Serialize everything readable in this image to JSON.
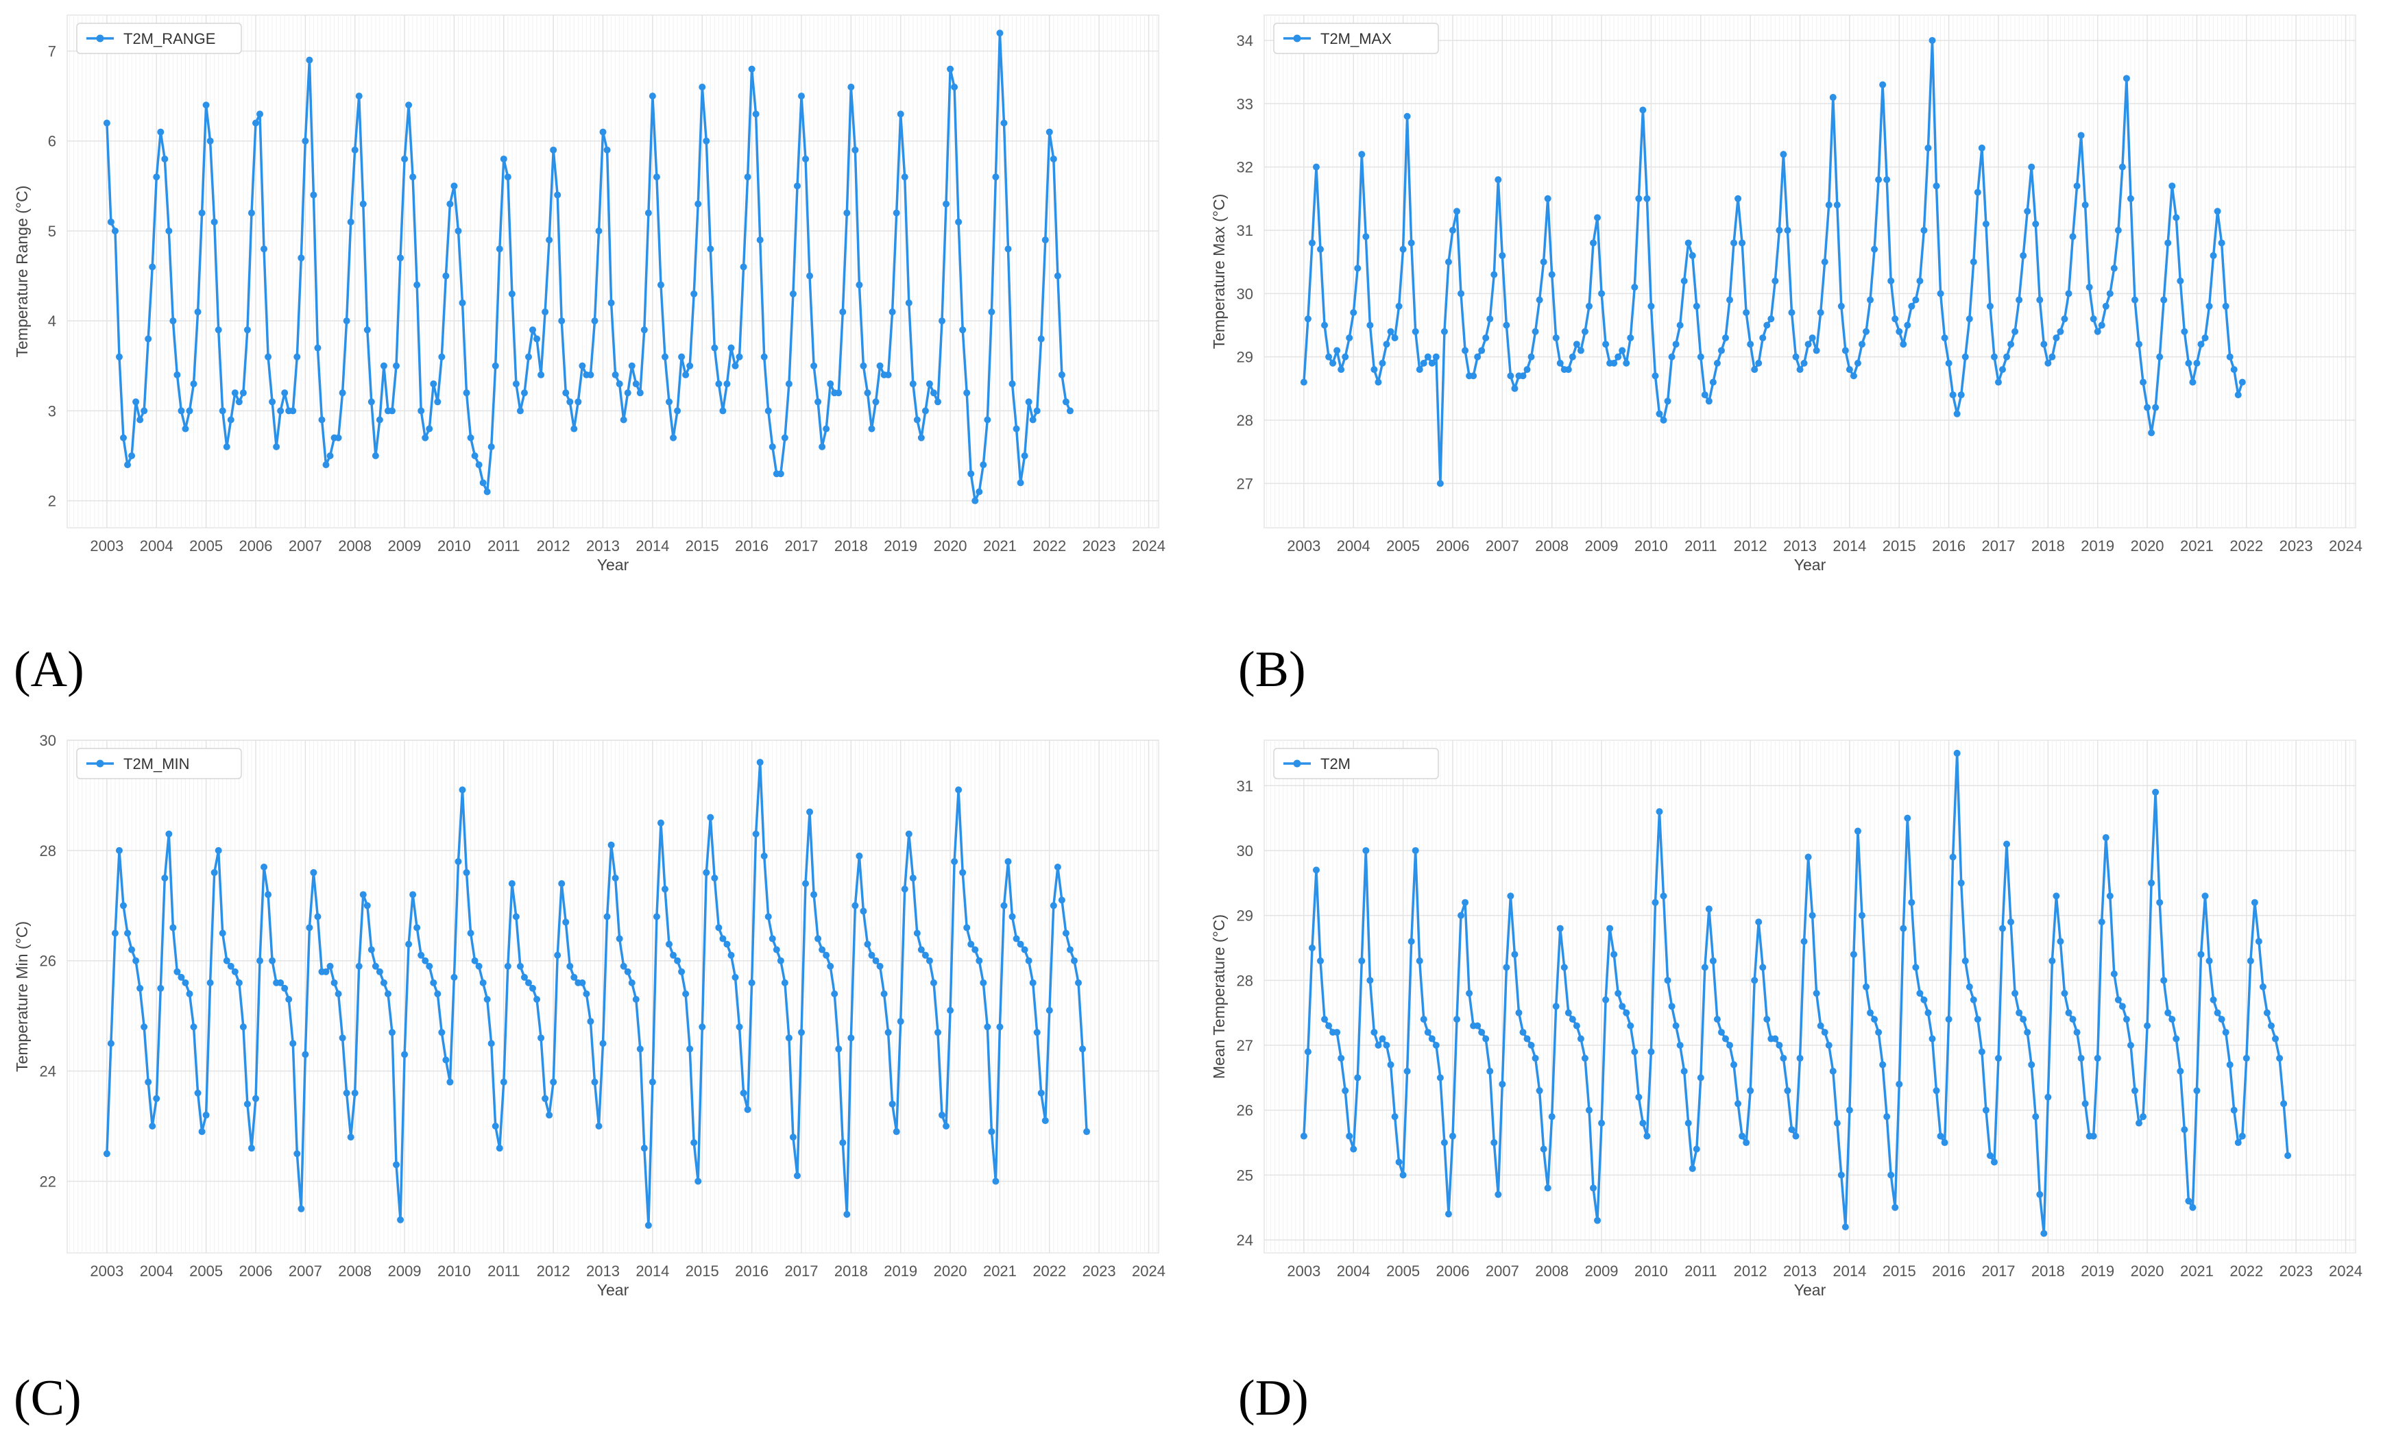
{
  "panel_labels": [
    "(A)",
    "(B)",
    "(C)",
    "(D)"
  ],
  "chart_data": [
    {
      "type": "line",
      "series": [
        {
          "name": "T2M_RANGE"
        }
      ],
      "xlabel": "Year",
      "ylabel": "Temperature Range (°C)",
      "xticks": [
        "2003",
        "2004",
        "2005",
        "2006",
        "2007",
        "2008",
        "2009",
        "2010",
        "2011",
        "2012",
        "2013",
        "2014",
        "2015",
        "2016",
        "2017",
        "2018",
        "2019",
        "2020",
        "2021",
        "2022",
        "2023",
        "2024"
      ],
      "yticks": [
        2,
        3,
        4,
        5,
        6,
        7
      ],
      "xlim": [
        2002.2,
        2024.2
      ],
      "ylim": [
        1.7,
        7.4
      ],
      "grid": true,
      "legend": "top-left",
      "color": "#2b90e8",
      "marker": "circle",
      "x_start": 2003.0,
      "x_step_months": 1,
      "values": [
        6.2,
        5.1,
        5.0,
        3.6,
        2.7,
        2.4,
        2.5,
        3.1,
        2.9,
        3.0,
        3.8,
        4.6,
        5.6,
        6.1,
        5.8,
        5.0,
        4.0,
        3.4,
        3.0,
        2.8,
        3.0,
        3.3,
        4.1,
        5.2,
        6.4,
        6.0,
        5.1,
        3.9,
        3.0,
        2.6,
        2.9,
        3.2,
        3.1,
        3.2,
        3.9,
        5.2,
        6.2,
        6.3,
        4.8,
        3.6,
        3.1,
        2.6,
        3.0,
        3.2,
        3.0,
        3.0,
        3.6,
        4.7,
        6.0,
        6.9,
        5.4,
        3.7,
        2.9,
        2.4,
        2.5,
        2.7,
        2.7,
        3.2,
        4.0,
        5.1,
        5.9,
        6.5,
        5.3,
        3.9,
        3.1,
        2.5,
        2.9,
        3.5,
        3.0,
        3.0,
        3.5,
        4.7,
        5.8,
        6.4,
        5.6,
        4.4,
        3.0,
        2.7,
        2.8,
        3.3,
        3.1,
        3.6,
        4.5,
        5.3,
        5.5,
        5.0,
        4.2,
        3.2,
        2.7,
        2.5,
        2.4,
        2.2,
        2.1,
        2.6,
        3.5,
        4.8,
        5.8,
        5.6,
        4.3,
        3.3,
        3.0,
        3.2,
        3.6,
        3.9,
        3.8,
        3.4,
        4.1,
        4.9,
        5.9,
        5.4,
        4.0,
        3.2,
        3.1,
        2.8,
        3.1,
        3.5,
        3.4,
        3.4,
        4.0,
        5.0,
        6.1,
        5.9,
        4.2,
        3.4,
        3.3,
        2.9,
        3.2,
        3.5,
        3.3,
        3.2,
        3.9,
        5.2,
        6.5,
        5.6,
        4.4,
        3.6,
        3.1,
        2.7,
        3.0,
        3.6,
        3.4,
        3.5,
        4.3,
        5.3,
        6.6,
        6.0,
        4.8,
        3.7,
        3.3,
        3.0,
        3.3,
        3.7,
        3.5,
        3.6,
        4.6,
        5.6,
        6.8,
        6.3,
        4.9,
        3.6,
        3.0,
        2.6,
        2.3,
        2.3,
        2.7,
        3.3,
        4.3,
        5.5,
        6.5,
        5.8,
        4.5,
        3.5,
        3.1,
        2.6,
        2.8,
        3.3,
        3.2,
        3.2,
        4.1,
        5.2,
        6.6,
        5.9,
        4.4,
        3.5,
        3.2,
        2.8,
        3.1,
        3.5,
        3.4,
        3.4,
        4.1,
        5.2,
        6.3,
        5.6,
        4.2,
        3.3,
        2.9,
        2.7,
        3.0,
        3.3,
        3.2,
        3.1,
        4.0,
        5.3,
        6.8,
        6.6,
        5.1,
        3.9,
        3.2,
        2.3,
        2.0,
        2.1,
        2.4,
        2.9,
        4.1,
        5.6,
        7.2,
        6.2,
        4.8,
        3.3,
        2.8,
        2.2,
        2.5,
        3.1,
        2.9,
        3.0,
        3.8,
        4.9,
        6.1,
        5.8,
        4.5,
        3.4,
        3.1,
        3.0
      ]
    },
    {
      "type": "line",
      "series": [
        {
          "name": "T2M_MAX"
        }
      ],
      "xlabel": "Year",
      "ylabel": "Temperature Max (°C)",
      "xticks": [
        "2003",
        "2004",
        "2005",
        "2006",
        "2007",
        "2008",
        "2009",
        "2010",
        "2011",
        "2012",
        "2013",
        "2014",
        "2015",
        "2016",
        "2017",
        "2018",
        "2019",
        "2020",
        "2021",
        "2022",
        "2023",
        "2024"
      ],
      "yticks": [
        27,
        28,
        29,
        30,
        31,
        32,
        33,
        34
      ],
      "xlim": [
        2002.2,
        2024.2
      ],
      "ylim": [
        26.3,
        34.4
      ],
      "grid": true,
      "legend": "top-left",
      "color": "#2b90e8",
      "marker": "circle",
      "x_start": 2003.0,
      "x_step_months": 1,
      "values": [
        28.6,
        29.6,
        30.8,
        32.0,
        30.7,
        29.5,
        29.0,
        28.9,
        29.1,
        28.8,
        29.0,
        29.3,
        29.7,
        30.4,
        32.2,
        30.9,
        29.5,
        28.8,
        28.6,
        28.9,
        29.2,
        29.4,
        29.3,
        29.8,
        30.7,
        32.8,
        30.8,
        29.4,
        28.8,
        28.9,
        29.0,
        28.9,
        29.0,
        27.0,
        29.4,
        30.5,
        31.0,
        31.3,
        30.0,
        29.1,
        28.7,
        28.7,
        29.0,
        29.1,
        29.3,
        29.6,
        30.3,
        31.8,
        30.6,
        29.5,
        28.7,
        28.5,
        28.7,
        28.7,
        28.8,
        29.0,
        29.4,
        29.9,
        30.5,
        31.5,
        30.3,
        29.3,
        28.9,
        28.8,
        28.8,
        29.0,
        29.2,
        29.1,
        29.4,
        29.8,
        30.8,
        31.2,
        30.0,
        29.2,
        28.9,
        28.9,
        29.0,
        29.1,
        28.9,
        29.3,
        30.1,
        31.5,
        32.9,
        31.5,
        29.8,
        28.7,
        28.1,
        28.0,
        28.3,
        29.0,
        29.2,
        29.5,
        30.2,
        30.8,
        30.6,
        29.8,
        29.0,
        28.4,
        28.3,
        28.6,
        28.9,
        29.1,
        29.3,
        29.9,
        30.8,
        31.5,
        30.8,
        29.7,
        29.2,
        28.8,
        28.9,
        29.3,
        29.5,
        29.6,
        30.2,
        31.0,
        32.2,
        31.0,
        29.7,
        29.0,
        28.8,
        28.9,
        29.2,
        29.3,
        29.1,
        29.7,
        30.5,
        31.4,
        33.1,
        31.4,
        29.8,
        29.1,
        28.8,
        28.7,
        28.9,
        29.2,
        29.4,
        29.9,
        30.7,
        31.8,
        33.3,
        31.8,
        30.2,
        29.6,
        29.4,
        29.2,
        29.5,
        29.8,
        29.9,
        30.2,
        31.0,
        32.3,
        34.0,
        31.7,
        30.0,
        29.3,
        28.9,
        28.4,
        28.1,
        28.4,
        29.0,
        29.6,
        30.5,
        31.6,
        32.3,
        31.1,
        29.8,
        29.0,
        28.6,
        28.8,
        29.0,
        29.2,
        29.4,
        29.9,
        30.6,
        31.3,
        32.0,
        31.1,
        29.9,
        29.2,
        28.9,
        29.0,
        29.3,
        29.4,
        29.6,
        30.0,
        30.9,
        31.7,
        32.5,
        31.4,
        30.1,
        29.6,
        29.4,
        29.5,
        29.8,
        30.0,
        30.4,
        31.0,
        32.0,
        33.4,
        31.5,
        29.9,
        29.2,
        28.6,
        28.2,
        27.8,
        28.2,
        29.0,
        29.9,
        30.8,
        31.7,
        31.2,
        30.2,
        29.4,
        28.9,
        28.6,
        28.9,
        29.2,
        29.3,
        29.8,
        30.6,
        31.3,
        30.8,
        29.8,
        29.0,
        28.8,
        28.4,
        28.6
      ]
    },
    {
      "type": "line",
      "series": [
        {
          "name": "T2M_MIN"
        }
      ],
      "xlabel": "Year",
      "ylabel": "Temperature Min (°C)",
      "xticks": [
        "2003",
        "2004",
        "2005",
        "2006",
        "2007",
        "2008",
        "2009",
        "2010",
        "2011",
        "2012",
        "2013",
        "2014",
        "2015",
        "2016",
        "2017",
        "2018",
        "2019",
        "2020",
        "2021",
        "2022",
        "2023",
        "2024"
      ],
      "yticks": [
        22,
        24,
        26,
        28,
        30
      ],
      "xlim": [
        2002.2,
        2024.2
      ],
      "ylim": [
        20.7,
        30.0
      ],
      "grid": true,
      "legend": "top-left",
      "color": "#2b90e8",
      "marker": "circle",
      "x_start": 2003.0,
      "x_step_months": 1,
      "values": [
        22.5,
        24.5,
        26.5,
        28.0,
        27.0,
        26.5,
        26.2,
        26.0,
        25.5,
        24.8,
        23.8,
        23.0,
        23.5,
        25.5,
        27.5,
        28.3,
        26.6,
        25.8,
        25.7,
        25.6,
        25.4,
        24.8,
        23.6,
        22.9,
        23.2,
        25.6,
        27.6,
        28.0,
        26.5,
        26.0,
        25.9,
        25.8,
        25.6,
        24.8,
        23.4,
        22.6,
        23.5,
        26.0,
        27.7,
        27.2,
        26.0,
        25.6,
        25.6,
        25.5,
        25.3,
        24.5,
        22.5,
        21.5,
        24.3,
        26.6,
        27.6,
        26.8,
        25.8,
        25.8,
        25.9,
        25.6,
        25.4,
        24.6,
        23.6,
        22.8,
        23.6,
        25.9,
        27.2,
        27.0,
        26.2,
        25.9,
        25.8,
        25.6,
        25.4,
        24.7,
        22.3,
        21.3,
        24.3,
        26.3,
        27.2,
        26.6,
        26.1,
        26.0,
        25.9,
        25.6,
        25.4,
        24.7,
        24.2,
        23.8,
        25.7,
        27.8,
        29.1,
        27.6,
        26.5,
        26.0,
        25.9,
        25.6,
        25.3,
        24.5,
        23.0,
        22.6,
        23.8,
        25.9,
        27.4,
        26.8,
        25.9,
        25.7,
        25.6,
        25.5,
        25.3,
        24.6,
        23.5,
        23.2,
        23.8,
        26.1,
        27.4,
        26.7,
        25.9,
        25.7,
        25.6,
        25.6,
        25.4,
        24.9,
        23.8,
        23.0,
        24.5,
        26.8,
        28.1,
        27.5,
        26.4,
        25.9,
        25.8,
        25.6,
        25.3,
        24.4,
        22.6,
        21.2,
        23.8,
        26.8,
        28.5,
        27.3,
        26.3,
        26.1,
        26.0,
        25.8,
        25.4,
        24.4,
        22.7,
        22.0,
        24.8,
        27.6,
        28.6,
        27.5,
        26.6,
        26.4,
        26.3,
        26.1,
        25.7,
        24.8,
        23.6,
        23.3,
        25.6,
        28.3,
        29.6,
        27.9,
        26.8,
        26.4,
        26.2,
        26.0,
        25.6,
        24.6,
        22.8,
        22.1,
        24.7,
        27.4,
        28.7,
        27.2,
        26.4,
        26.2,
        26.1,
        25.9,
        25.4,
        24.4,
        22.7,
        21.4,
        24.6,
        27.0,
        27.9,
        26.9,
        26.3,
        26.1,
        26.0,
        25.9,
        25.4,
        24.7,
        23.4,
        22.9,
        24.9,
        27.3,
        28.3,
        27.5,
        26.5,
        26.2,
        26.1,
        26.0,
        25.6,
        24.7,
        23.2,
        23.0,
        25.1,
        27.8,
        29.1,
        27.6,
        26.6,
        26.3,
        26.2,
        26.0,
        25.6,
        24.8,
        22.9,
        22.0,
        24.8,
        27.0,
        27.8,
        26.8,
        26.4,
        26.3,
        26.2,
        26.0,
        25.6,
        24.7,
        23.6,
        23.1,
        25.1,
        27.0,
        27.7,
        27.1,
        26.5,
        26.2,
        26.0,
        25.6,
        24.4,
        22.9
      ]
    },
    {
      "type": "line",
      "series": [
        {
          "name": "T2M"
        }
      ],
      "xlabel": "Year",
      "ylabel": "Mean Temperature (°C)",
      "xticks": [
        "2003",
        "2004",
        "2005",
        "2006",
        "2007",
        "2008",
        "2009",
        "2010",
        "2011",
        "2012",
        "2013",
        "2014",
        "2015",
        "2016",
        "2017",
        "2018",
        "2019",
        "2020",
        "2021",
        "2022",
        "2023",
        "2024"
      ],
      "yticks": [
        24,
        25,
        26,
        27,
        28,
        29,
        30,
        31
      ],
      "xlim": [
        2002.2,
        2024.2
      ],
      "ylim": [
        23.8,
        31.7
      ],
      "grid": true,
      "legend": "top-left",
      "color": "#2b90e8",
      "marker": "circle",
      "x_start": 2003.0,
      "x_step_months": 1,
      "values": [
        25.6,
        26.9,
        28.5,
        29.7,
        28.3,
        27.4,
        27.3,
        27.2,
        27.2,
        26.8,
        26.3,
        25.6,
        25.4,
        26.5,
        28.3,
        30.0,
        28.0,
        27.2,
        27.0,
        27.1,
        27.0,
        26.7,
        25.9,
        25.2,
        25.0,
        26.6,
        28.6,
        30.0,
        28.3,
        27.4,
        27.2,
        27.1,
        27.0,
        26.5,
        25.5,
        24.4,
        25.6,
        27.4,
        29.0,
        29.2,
        27.8,
        27.3,
        27.3,
        27.2,
        27.1,
        26.6,
        25.5,
        24.7,
        26.4,
        28.2,
        29.3,
        28.4,
        27.5,
        27.2,
        27.1,
        27.0,
        26.8,
        26.3,
        25.4,
        24.8,
        25.9,
        27.6,
        28.8,
        28.2,
        27.5,
        27.4,
        27.3,
        27.1,
        26.8,
        26.0,
        24.8,
        24.3,
        25.8,
        27.7,
        28.8,
        28.4,
        27.8,
        27.6,
        27.5,
        27.3,
        26.9,
        26.2,
        25.8,
        25.6,
        26.9,
        29.2,
        30.6,
        29.3,
        28.0,
        27.6,
        27.3,
        27.0,
        26.6,
        25.8,
        25.1,
        25.4,
        26.5,
        28.2,
        29.1,
        28.3,
        27.4,
        27.2,
        27.1,
        27.0,
        26.7,
        26.1,
        25.6,
        25.5,
        26.3,
        28.0,
        28.9,
        28.2,
        27.4,
        27.1,
        27.1,
        27.0,
        26.8,
        26.3,
        25.7,
        25.6,
        26.8,
        28.6,
        29.9,
        29.0,
        27.8,
        27.3,
        27.2,
        27.0,
        26.6,
        25.8,
        25.0,
        24.2,
        26.0,
        28.4,
        30.3,
        29.0,
        27.9,
        27.5,
        27.4,
        27.2,
        26.7,
        25.9,
        25.0,
        24.5,
        26.4,
        28.8,
        30.5,
        29.2,
        28.2,
        27.8,
        27.7,
        27.5,
        27.1,
        26.3,
        25.6,
        25.5,
        27.4,
        29.9,
        31.5,
        29.5,
        28.3,
        27.9,
        27.7,
        27.4,
        26.9,
        26.0,
        25.3,
        25.2,
        26.8,
        28.8,
        30.1,
        28.9,
        27.8,
        27.5,
        27.4,
        27.2,
        26.7,
        25.9,
        24.7,
        24.1,
        26.2,
        28.3,
        29.3,
        28.6,
        27.8,
        27.5,
        27.4,
        27.2,
        26.8,
        26.1,
        25.6,
        25.6,
        26.8,
        28.9,
        30.2,
        29.3,
        28.1,
        27.7,
        27.6,
        27.4,
        27.0,
        26.3,
        25.8,
        25.9,
        27.3,
        29.5,
        30.9,
        29.2,
        28.0,
        27.5,
        27.4,
        27.1,
        26.6,
        25.7,
        24.6,
        24.5,
        26.3,
        28.4,
        29.3,
        28.3,
        27.7,
        27.5,
        27.4,
        27.2,
        26.7,
        26.0,
        25.5,
        25.6,
        26.8,
        28.3,
        29.2,
        28.6,
        27.9,
        27.5,
        27.3,
        27.1,
        26.8,
        26.1,
        25.3
      ]
    }
  ]
}
